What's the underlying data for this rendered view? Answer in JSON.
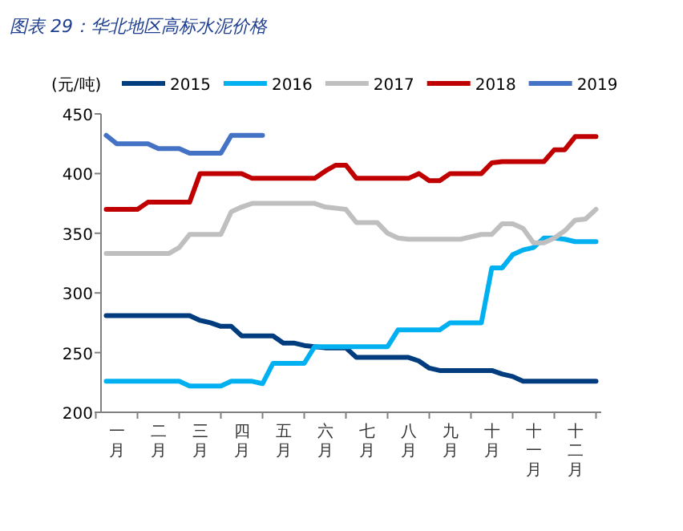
{
  "chart_data": {
    "type": "line",
    "title": "图表 29：华北地区高标水泥价格",
    "ylabel": "(元/吨)",
    "categories": [
      null,
      "一月",
      null,
      null,
      null,
      "二月",
      null,
      null,
      null,
      "三月",
      null,
      null,
      null,
      "四月",
      null,
      null,
      null,
      "五月",
      null,
      null,
      null,
      "六月",
      null,
      null,
      null,
      "七月",
      null,
      null,
      null,
      "八月",
      null,
      null,
      null,
      "九月",
      null,
      null,
      null,
      "十月",
      null,
      null,
      null,
      "十一月",
      null,
      null,
      null,
      "十二月",
      null,
      null
    ],
    "ylim": [
      200,
      450
    ],
    "yticks": [
      200,
      250,
      300,
      350,
      400,
      450
    ],
    "legend": "top",
    "line_style": "solid",
    "series": [
      {
        "name": "2015",
        "color": "#003c7e",
        "values": [
          281,
          281,
          281,
          281,
          281,
          281,
          281,
          281,
          281,
          277,
          275,
          272,
          272,
          264,
          264,
          264,
          264,
          258,
          258,
          256,
          255,
          254,
          254,
          254,
          246,
          246,
          246,
          246,
          246,
          246,
          243,
          237,
          235,
          235,
          235,
          235,
          235,
          235,
          232,
          230,
          226,
          226,
          226,
          226,
          226,
          226,
          226,
          226
        ]
      },
      {
        "name": "2016",
        "color": "#00b0f0",
        "values": [
          226,
          226,
          226,
          226,
          226,
          226,
          226,
          226,
          222,
          222,
          222,
          222,
          226,
          226,
          226,
          224,
          241,
          241,
          241,
          241,
          255,
          255,
          255,
          255,
          255,
          255,
          255,
          255,
          269,
          269,
          269,
          269,
          269,
          275,
          275,
          275,
          275,
          321,
          321,
          332,
          336,
          338,
          346,
          346,
          345,
          343,
          343,
          343
        ]
      },
      {
        "name": "2017",
        "color": "#bfbfbf",
        "values": [
          333,
          333,
          333,
          333,
          333,
          333,
          333,
          338,
          349,
          349,
          349,
          349,
          368,
          372,
          375,
          375,
          375,
          375,
          375,
          375,
          375,
          372,
          371,
          370,
          359,
          359,
          359,
          350,
          346,
          345,
          345,
          345,
          345,
          345,
          345,
          347,
          349,
          349,
          358,
          358,
          354,
          342,
          342,
          346,
          352,
          361,
          362,
          370
        ]
      },
      {
        "name": "2018",
        "color": "#c00000",
        "values": [
          370,
          370,
          370,
          370,
          376,
          376,
          376,
          376,
          376,
          400,
          400,
          400,
          400,
          400,
          396,
          396,
          396,
          396,
          396,
          396,
          396,
          402,
          407,
          407,
          396,
          396,
          396,
          396,
          396,
          396,
          400,
          394,
          394,
          400,
          400,
          400,
          400,
          409,
          410,
          410,
          410,
          410,
          410,
          420,
          420,
          431,
          431,
          431
        ]
      },
      {
        "name": "2019",
        "color": "#4472c4",
        "values": [
          432,
          425,
          425,
          425,
          425,
          421,
          421,
          421,
          417,
          417,
          417,
          417,
          432,
          432,
          432,
          432,
          null,
          null,
          null,
          null,
          null,
          null,
          null,
          null,
          null,
          null,
          null,
          null,
          null,
          null,
          null,
          null,
          null,
          null,
          null,
          null,
          null,
          null,
          null,
          null,
          null,
          null,
          null,
          null,
          null,
          null,
          null,
          null
        ]
      }
    ]
  }
}
